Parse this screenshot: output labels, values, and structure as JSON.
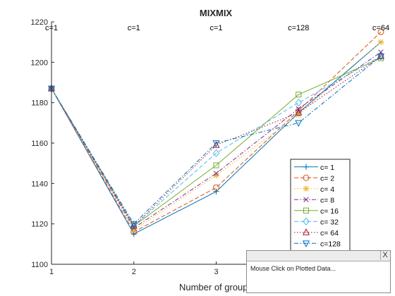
{
  "chart_data": {
    "type": "line",
    "title": "MIXMIX",
    "xlabel": "Number of groups",
    "ylabel": "",
    "xlim": [
      1,
      5
    ],
    "ylim": [
      1100,
      1220
    ],
    "x": [
      1,
      2,
      3,
      4,
      5
    ],
    "xticks": [
      "1",
      "2",
      "3",
      "4",
      "5"
    ],
    "yticks": [
      "1100",
      "1120",
      "1140",
      "1160",
      "1180",
      "1200",
      "1220"
    ],
    "grid": false,
    "legend_position": "lower-right",
    "annotations": [
      {
        "x": 1,
        "text": "c=1"
      },
      {
        "x": 2,
        "text": "c=1"
      },
      {
        "x": 3,
        "text": "c=1"
      },
      {
        "x": 4,
        "text": "c=128"
      },
      {
        "x": 5,
        "text": "c=64"
      }
    ],
    "series": [
      {
        "name": "c=  1",
        "values": [
          1187,
          1115,
          1136,
          1175,
          1210
        ],
        "color": "#0072bd",
        "linestyle": "solid",
        "marker": "plus"
      },
      {
        "name": "c=  2",
        "values": [
          1187,
          1116,
          1138,
          1176,
          1215
        ],
        "color": "#d95319",
        "linestyle": "dashed",
        "marker": "circle"
      },
      {
        "name": "c=  4",
        "values": [
          1187,
          1117,
          1144,
          1174,
          1210
        ],
        "color": "#edb120",
        "linestyle": "dotted",
        "marker": "asterisk"
      },
      {
        "name": "c=  8",
        "values": [
          1187,
          1118,
          1145,
          1177,
          1205
        ],
        "color": "#7e2f8e",
        "linestyle": "dashdot",
        "marker": "x"
      },
      {
        "name": "c= 16",
        "values": [
          1187,
          1119,
          1149,
          1184,
          1202
        ],
        "color": "#77ac30",
        "linestyle": "solid",
        "marker": "square"
      },
      {
        "name": "c= 32",
        "values": [
          1187,
          1119,
          1155,
          1180,
          1203
        ],
        "color": "#4dbeee",
        "linestyle": "dashed",
        "marker": "diamond"
      },
      {
        "name": "c= 64",
        "values": [
          1187,
          1119,
          1159,
          1175,
          1203
        ],
        "color": "#a2142f",
        "linestyle": "dotted",
        "marker": "triangle-up"
      },
      {
        "name": "c=128",
        "values": [
          1187,
          1120,
          1160,
          1170,
          1203
        ],
        "color": "#0072bd",
        "linestyle": "dashdot",
        "marker": "triangle-down"
      }
    ]
  },
  "tooltip": {
    "close_label": "X",
    "message": "Mouse Click on Plotted Data..."
  }
}
